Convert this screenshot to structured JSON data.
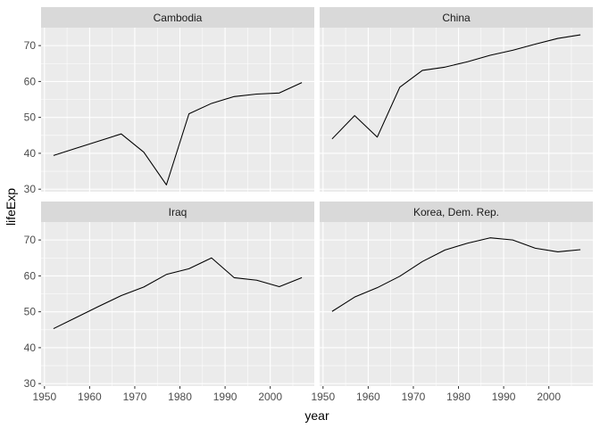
{
  "chart_data": {
    "type": "line",
    "xlabel": "year",
    "ylabel": "lifeExp",
    "xlim": [
      1949.25,
      2009.75
    ],
    "ylim": [
      29.3,
      75.0
    ],
    "x_ticks": [
      1950,
      1960,
      1970,
      1980,
      1990,
      2000
    ],
    "y_ticks": [
      30,
      40,
      50,
      60,
      70
    ],
    "grid": true,
    "facets": [
      {
        "name": "Cambodia",
        "x": [
          1952,
          1957,
          1962,
          1967,
          1972,
          1977,
          1982,
          1987,
          1992,
          1997,
          2002,
          2007
        ],
        "values": [
          39.4,
          41.4,
          43.4,
          45.4,
          40.3,
          31.2,
          51.0,
          53.9,
          55.8,
          56.5,
          56.8,
          59.7
        ]
      },
      {
        "name": "China",
        "x": [
          1952,
          1957,
          1962,
          1967,
          1972,
          1977,
          1982,
          1987,
          1992,
          1997,
          2002,
          2007
        ],
        "values": [
          44.0,
          50.5,
          44.5,
          58.4,
          63.1,
          64.0,
          65.5,
          67.3,
          68.7,
          70.4,
          72.0,
          73.0
        ]
      },
      {
        "name": "Iraq",
        "x": [
          1952,
          1957,
          1962,
          1967,
          1972,
          1977,
          1982,
          1987,
          1992,
          1997,
          2002,
          2007
        ],
        "values": [
          45.3,
          48.4,
          51.5,
          54.5,
          56.9,
          60.4,
          62.0,
          65.0,
          59.5,
          58.8,
          57.0,
          59.5
        ]
      },
      {
        "name": "Korea, Dem. Rep.",
        "x": [
          1952,
          1957,
          1962,
          1967,
          1972,
          1977,
          1982,
          1987,
          1992,
          1997,
          2002,
          2007
        ],
        "values": [
          50.1,
          54.1,
          56.7,
          59.9,
          64.0,
          67.2,
          69.1,
          70.6,
          70.0,
          67.7,
          66.7,
          67.3
        ]
      }
    ]
  },
  "colors": {
    "panel_bg": "#ebebeb",
    "strip_bg": "#d9d9d9",
    "grid_major": "#ffffff",
    "line": "#000000"
  }
}
